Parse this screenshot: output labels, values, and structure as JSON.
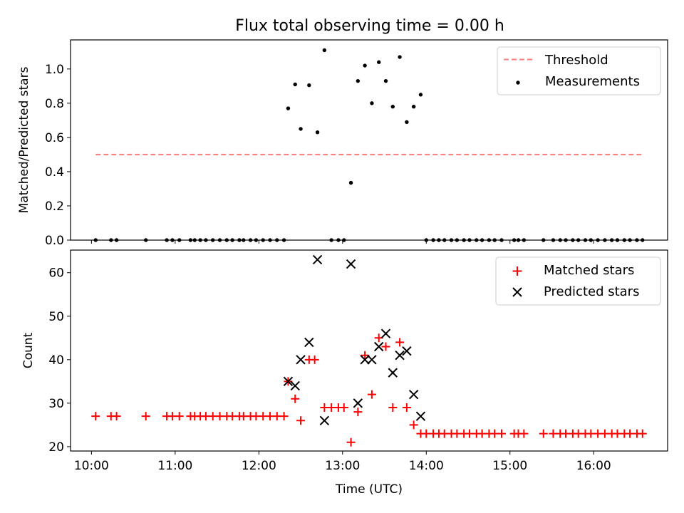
{
  "figure": {
    "title": "Flux total observing time = 0.00 h"
  },
  "chart_data": [
    {
      "type": "scatter",
      "panel": "top",
      "ylabel": "Matched/Predicted stars",
      "xlabel": "",
      "xlim": [
        "09:45",
        "16:53"
      ],
      "ylim": [
        0,
        1.17
      ],
      "yticks": [
        0.0,
        0.2,
        0.4,
        0.6,
        0.8,
        1.0
      ],
      "ytick_labels": [
        "0.0",
        "0.2",
        "0.4",
        "0.6",
        "0.8",
        "1.0"
      ],
      "grid": false,
      "legend_position": "top-right",
      "threshold": {
        "name": "Threshold",
        "value": 0.5,
        "x_range": [
          "10:03",
          "16:35"
        ],
        "color": "#ff7f7f",
        "style": "dashed"
      },
      "series": [
        {
          "name": "Measurements",
          "marker": "dot",
          "color": "#000000",
          "points": [
            [
              "10:03",
              0
            ],
            [
              "10:14",
              0
            ],
            [
              "10:18",
              0
            ],
            [
              "10:39",
              0
            ],
            [
              "10:54",
              0
            ],
            [
              "10:58",
              0
            ],
            [
              "11:03",
              0
            ],
            [
              "11:11",
              0
            ],
            [
              "11:14",
              0
            ],
            [
              "11:18",
              0
            ],
            [
              "11:22",
              0
            ],
            [
              "11:27",
              0
            ],
            [
              "11:32",
              0
            ],
            [
              "11:37",
              0
            ],
            [
              "11:41",
              0
            ],
            [
              "11:46",
              0
            ],
            [
              "11:49",
              0
            ],
            [
              "11:54",
              0
            ],
            [
              "11:58",
              0
            ],
            [
              "12:03",
              0
            ],
            [
              "12:08",
              0
            ],
            [
              "12:13",
              0
            ],
            [
              "12:18",
              0
            ],
            [
              "12:21",
              0.77
            ],
            [
              "12:26",
              0.91
            ],
            [
              "12:30",
              0.65
            ],
            [
              "12:36",
              0.905
            ],
            [
              "12:42",
              0.63
            ],
            [
              "12:47",
              1.11
            ],
            [
              "12:52",
              0
            ],
            [
              "12:57",
              0
            ],
            [
              "13:01",
              0
            ],
            [
              "13:06",
              0.335
            ],
            [
              "13:11",
              0.93
            ],
            [
              "13:16",
              1.02
            ],
            [
              "13:21",
              0.8
            ],
            [
              "13:26",
              1.04
            ],
            [
              "13:31",
              0.93
            ],
            [
              "13:36",
              0.78
            ],
            [
              "13:41",
              1.07
            ],
            [
              "13:46",
              0.69
            ],
            [
              "13:51",
              0.78
            ],
            [
              "13:56",
              0.85
            ],
            [
              "14:00",
              0
            ],
            [
              "14:05",
              0
            ],
            [
              "14:09",
              0
            ],
            [
              "14:13",
              0
            ],
            [
              "14:18",
              0
            ],
            [
              "14:22",
              0
            ],
            [
              "14:27",
              0
            ],
            [
              "14:31",
              0
            ],
            [
              "14:36",
              0
            ],
            [
              "14:40",
              0
            ],
            [
              "14:45",
              0
            ],
            [
              "14:49",
              0
            ],
            [
              "14:54",
              0
            ],
            [
              "15:03",
              0
            ],
            [
              "15:06",
              0
            ],
            [
              "15:10",
              0
            ],
            [
              "15:24",
              0
            ],
            [
              "15:31",
              0
            ],
            [
              "15:36",
              0
            ],
            [
              "15:40",
              0
            ],
            [
              "15:45",
              0
            ],
            [
              "15:49",
              0
            ],
            [
              "15:54",
              0
            ],
            [
              "15:58",
              0
            ],
            [
              "16:03",
              0
            ],
            [
              "16:08",
              0
            ],
            [
              "16:13",
              0
            ],
            [
              "16:17",
              0
            ],
            [
              "16:22",
              0
            ],
            [
              "16:26",
              0
            ],
            [
              "16:31",
              0
            ],
            [
              "16:35",
              0
            ]
          ]
        }
      ]
    },
    {
      "type": "scatter",
      "panel": "bottom",
      "xlabel": "Time (UTC)",
      "ylabel": "Count",
      "xlim": [
        "09:45",
        "16:53"
      ],
      "ylim": [
        19,
        65.2
      ],
      "yticks": [
        20,
        30,
        40,
        50,
        60
      ],
      "ytick_labels": [
        "20",
        "30",
        "40",
        "50",
        "60"
      ],
      "xticks": [
        "10:00",
        "11:00",
        "12:00",
        "13:00",
        "14:00",
        "15:00",
        "16:00"
      ],
      "grid": false,
      "legend_position": "top-right",
      "series": [
        {
          "name": "Matched stars",
          "marker": "plus",
          "color": "#ff0000",
          "points": [
            [
              "10:03",
              27
            ],
            [
              "10:14",
              27
            ],
            [
              "10:18",
              27
            ],
            [
              "10:39",
              27
            ],
            [
              "10:54",
              27
            ],
            [
              "10:58",
              27
            ],
            [
              "11:03",
              27
            ],
            [
              "11:11",
              27
            ],
            [
              "11:14",
              27
            ],
            [
              "11:18",
              27
            ],
            [
              "11:22",
              27
            ],
            [
              "11:27",
              27
            ],
            [
              "11:32",
              27
            ],
            [
              "11:37",
              27
            ],
            [
              "11:41",
              27
            ],
            [
              "11:46",
              27
            ],
            [
              "11:49",
              27
            ],
            [
              "11:54",
              27
            ],
            [
              "11:58",
              27
            ],
            [
              "12:03",
              27
            ],
            [
              "12:08",
              27
            ],
            [
              "12:13",
              27
            ],
            [
              "12:18",
              27
            ],
            [
              "12:21",
              35
            ],
            [
              "12:26",
              31
            ],
            [
              "12:30",
              26
            ],
            [
              "12:36",
              40
            ],
            [
              "12:40",
              40
            ],
            [
              "12:47",
              29
            ],
            [
              "12:52",
              29
            ],
            [
              "12:57",
              29
            ],
            [
              "13:01",
              29
            ],
            [
              "13:06",
              21
            ],
            [
              "13:11",
              28
            ],
            [
              "13:16",
              41
            ],
            [
              "13:21",
              32
            ],
            [
              "13:26",
              45
            ],
            [
              "13:31",
              43
            ],
            [
              "13:36",
              29
            ],
            [
              "13:41",
              44
            ],
            [
              "13:46",
              29
            ],
            [
              "13:51",
              25
            ],
            [
              "13:56",
              23
            ],
            [
              "14:00",
              23
            ],
            [
              "14:05",
              23
            ],
            [
              "14:09",
              23
            ],
            [
              "14:13",
              23
            ],
            [
              "14:18",
              23
            ],
            [
              "14:22",
              23
            ],
            [
              "14:27",
              23
            ],
            [
              "14:31",
              23
            ],
            [
              "14:36",
              23
            ],
            [
              "14:40",
              23
            ],
            [
              "14:45",
              23
            ],
            [
              "14:49",
              23
            ],
            [
              "14:54",
              23
            ],
            [
              "15:03",
              23
            ],
            [
              "15:06",
              23
            ],
            [
              "15:10",
              23
            ],
            [
              "15:24",
              23
            ],
            [
              "15:31",
              23
            ],
            [
              "15:36",
              23
            ],
            [
              "15:40",
              23
            ],
            [
              "15:45",
              23
            ],
            [
              "15:49",
              23
            ],
            [
              "15:54",
              23
            ],
            [
              "15:58",
              23
            ],
            [
              "16:03",
              23
            ],
            [
              "16:08",
              23
            ],
            [
              "16:13",
              23
            ],
            [
              "16:17",
              23
            ],
            [
              "16:22",
              23
            ],
            [
              "16:26",
              23
            ],
            [
              "16:31",
              23
            ],
            [
              "16:35",
              23
            ]
          ]
        },
        {
          "name": "Predicted stars",
          "marker": "x",
          "color": "#000000",
          "points": [
            [
              "12:21",
              35
            ],
            [
              "12:26",
              34
            ],
            [
              "12:30",
              40
            ],
            [
              "12:36",
              44
            ],
            [
              "12:42",
              63
            ],
            [
              "12:47",
              26
            ],
            [
              "13:06",
              62
            ],
            [
              "13:11",
              30
            ],
            [
              "13:16",
              40
            ],
            [
              "13:21",
              40
            ],
            [
              "13:26",
              43
            ],
            [
              "13:31",
              46
            ],
            [
              "13:36",
              37
            ],
            [
              "13:41",
              41
            ],
            [
              "13:46",
              42
            ],
            [
              "13:51",
              32
            ],
            [
              "13:56",
              27
            ]
          ]
        }
      ]
    }
  ]
}
